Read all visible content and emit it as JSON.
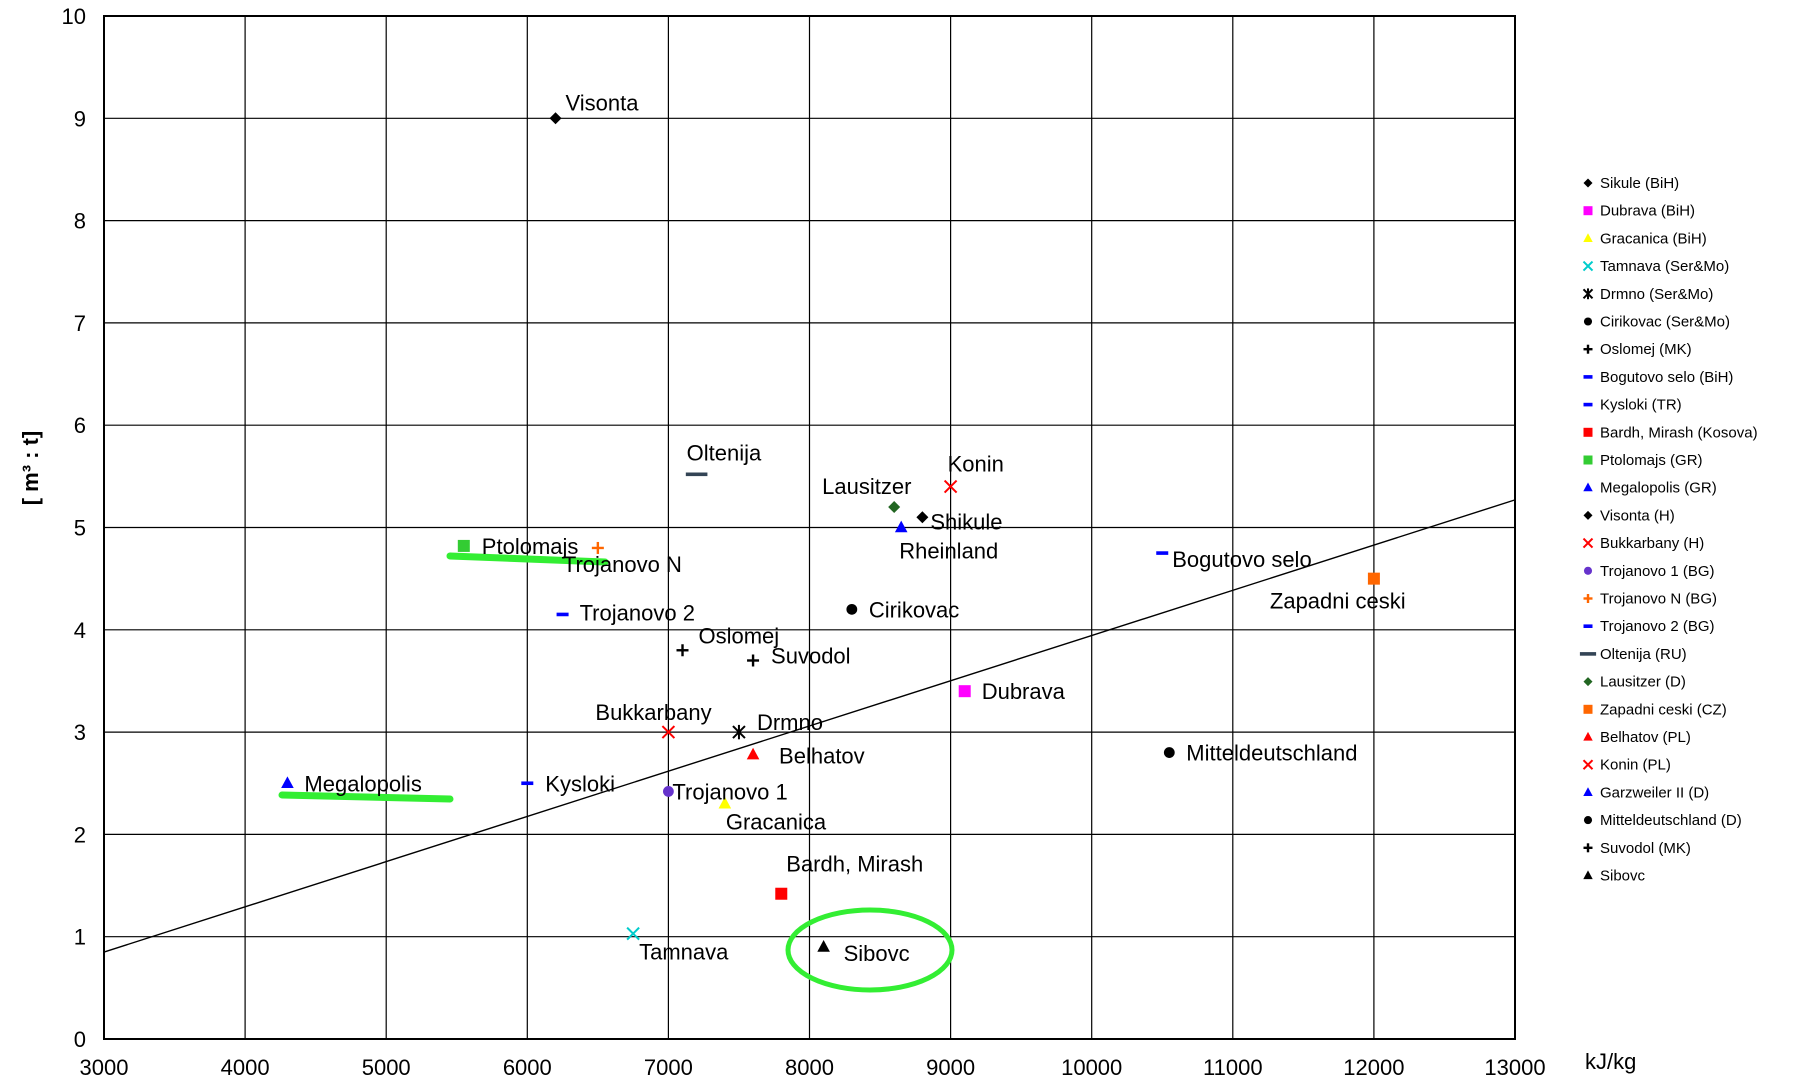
{
  "chart_data": {
    "type": "scatter",
    "title": "",
    "xlabel": "kJ/kg",
    "ylabel": "[ m³ : t]",
    "xlim": [
      3000,
      13000
    ],
    "ylim": [
      0,
      10
    ],
    "x_ticks": [
      "3000",
      "4000",
      "5000",
      "6000",
      "7000",
      "8000",
      "9000",
      "10000",
      "11000",
      "12000",
      "13000"
    ],
    "y_ticks": [
      "0",
      "1",
      "2",
      "3",
      "4",
      "5",
      "6",
      "7",
      "8",
      "9",
      "10"
    ],
    "grid": true,
    "legend_position": "right",
    "trendline": {
      "x": [
        3000,
        13000
      ],
      "y": [
        0.85,
        5.27
      ]
    },
    "series": [
      {
        "name": "Sikule (BiH)",
        "marker": "diamond",
        "color": "#000000",
        "x": 8800,
        "y": 5.1,
        "label": "Shikule"
      },
      {
        "name": "Dubrava (BiH)",
        "marker": "square",
        "color": "#ff00ff",
        "x": 9100,
        "y": 3.4,
        "label": "Dubrava"
      },
      {
        "name": "Gracanica (BiH)",
        "marker": "triangle",
        "color": "#ffff00",
        "x": 7400,
        "y": 2.3,
        "label": "Gracanica"
      },
      {
        "name": "Tamnava (Ser&Mo)",
        "marker": "x",
        "color": "#00cccc",
        "x": 6750,
        "y": 1.03,
        "label": "Tamnava"
      },
      {
        "name": "Drmno (Ser&Mo)",
        "marker": "star",
        "color": "#000000",
        "x": 7500,
        "y": 3.0,
        "label": "Drmno"
      },
      {
        "name": "Cirikovac (Ser&Mo)",
        "marker": "circle",
        "color": "#000000",
        "x": 8300,
        "y": 4.2,
        "label": "Cirikovac"
      },
      {
        "name": "Oslomej (MK)",
        "marker": "plus",
        "color": "#000000",
        "x": 7100,
        "y": 3.8,
        "label": "Oslomej"
      },
      {
        "name": "Bogutovo selo (BiH)",
        "marker": "dash",
        "color": "#0000ff",
        "x": 10500,
        "y": 4.75,
        "label": "Bogutovo selo"
      },
      {
        "name": "Kysloki (TR)",
        "marker": "dash",
        "color": "#0000ff",
        "x": 6000,
        "y": 2.5,
        "label": "Kysloki"
      },
      {
        "name": "Bardh, Mirash (Kosova)",
        "marker": "square",
        "color": "#ff0000",
        "x": 7800,
        "y": 1.42,
        "label": "Bardh, Mirash"
      },
      {
        "name": "Ptolomajs (GR)",
        "marker": "square",
        "color": "#33cc33",
        "x": 5550,
        "y": 4.82,
        "label": "Ptolomajs"
      },
      {
        "name": "Megalopolis (GR)",
        "marker": "triangle",
        "color": "#0000ff",
        "x": 4300,
        "y": 2.5,
        "label": "Megalopolis"
      },
      {
        "name": "Visonta (H)",
        "marker": "diamond",
        "color": "#000000",
        "x": 6200,
        "y": 9.0,
        "label": "Visonta"
      },
      {
        "name": "Bukkarbany (H)",
        "marker": "x",
        "color": "#ff0000",
        "x": 7000,
        "y": 3.0,
        "label": "Bukkarbany"
      },
      {
        "name": "Trojanovo 1 (BG)",
        "marker": "circle",
        "color": "#6633cc",
        "x": 7000,
        "y": 2.42,
        "label": "Trojanovo 1"
      },
      {
        "name": "Trojanovo N (BG)",
        "marker": "plus",
        "color": "#ff6600",
        "x": 6500,
        "y": 4.8,
        "label": "Trojanovo N"
      },
      {
        "name": "Trojanovo 2 (BG)",
        "marker": "dash",
        "color": "#0000ff",
        "x": 6250,
        "y": 4.15,
        "label": "Trojanovo 2"
      },
      {
        "name": "Oltenija (RU)",
        "marker": "longdash",
        "color": "#334455",
        "x": 7200,
        "y": 5.52,
        "label": "Oltenija"
      },
      {
        "name": "Lausitzer (D)",
        "marker": "diamond",
        "color": "#226622",
        "x": 8600,
        "y": 5.2,
        "label": "Lausitzer"
      },
      {
        "name": "Zapadni ceski (CZ)",
        "marker": "square",
        "color": "#ff6600",
        "x": 12000,
        "y": 4.5,
        "label": "Zapadni ceski"
      },
      {
        "name": "Belhatov (PL)",
        "marker": "triangle",
        "color": "#ff0000",
        "x": 7600,
        "y": 2.78,
        "label": "Belhatov"
      },
      {
        "name": "Konin (PL)",
        "marker": "x",
        "color": "#ff0000",
        "x": 9000,
        "y": 5.4,
        "label": "Konin"
      },
      {
        "name": "Garzweiler II (D)",
        "marker": "triangle",
        "color": "#0000ff",
        "x": 8650,
        "y": 5.0,
        "label": "Rheinland"
      },
      {
        "name": "Mitteldeutschland (D)",
        "marker": "circle",
        "color": "#000000",
        "x": 10550,
        "y": 2.8,
        "label": "Mitteldeutschland"
      },
      {
        "name": "Suvodol (MK)",
        "marker": "plus",
        "color": "#000000",
        "x": 7600,
        "y": 3.7,
        "label": "Suvodol"
      },
      {
        "name": "Sibovc",
        "marker": "triangle",
        "color": "#000000",
        "x": 8100,
        "y": 0.9,
        "label": "Sibovc"
      }
    ],
    "annotations": {
      "highlight_color": "#33ee33",
      "underlines": [
        "Ptolomajs",
        "Megalopolis"
      ],
      "circled": "Sibovc"
    }
  }
}
